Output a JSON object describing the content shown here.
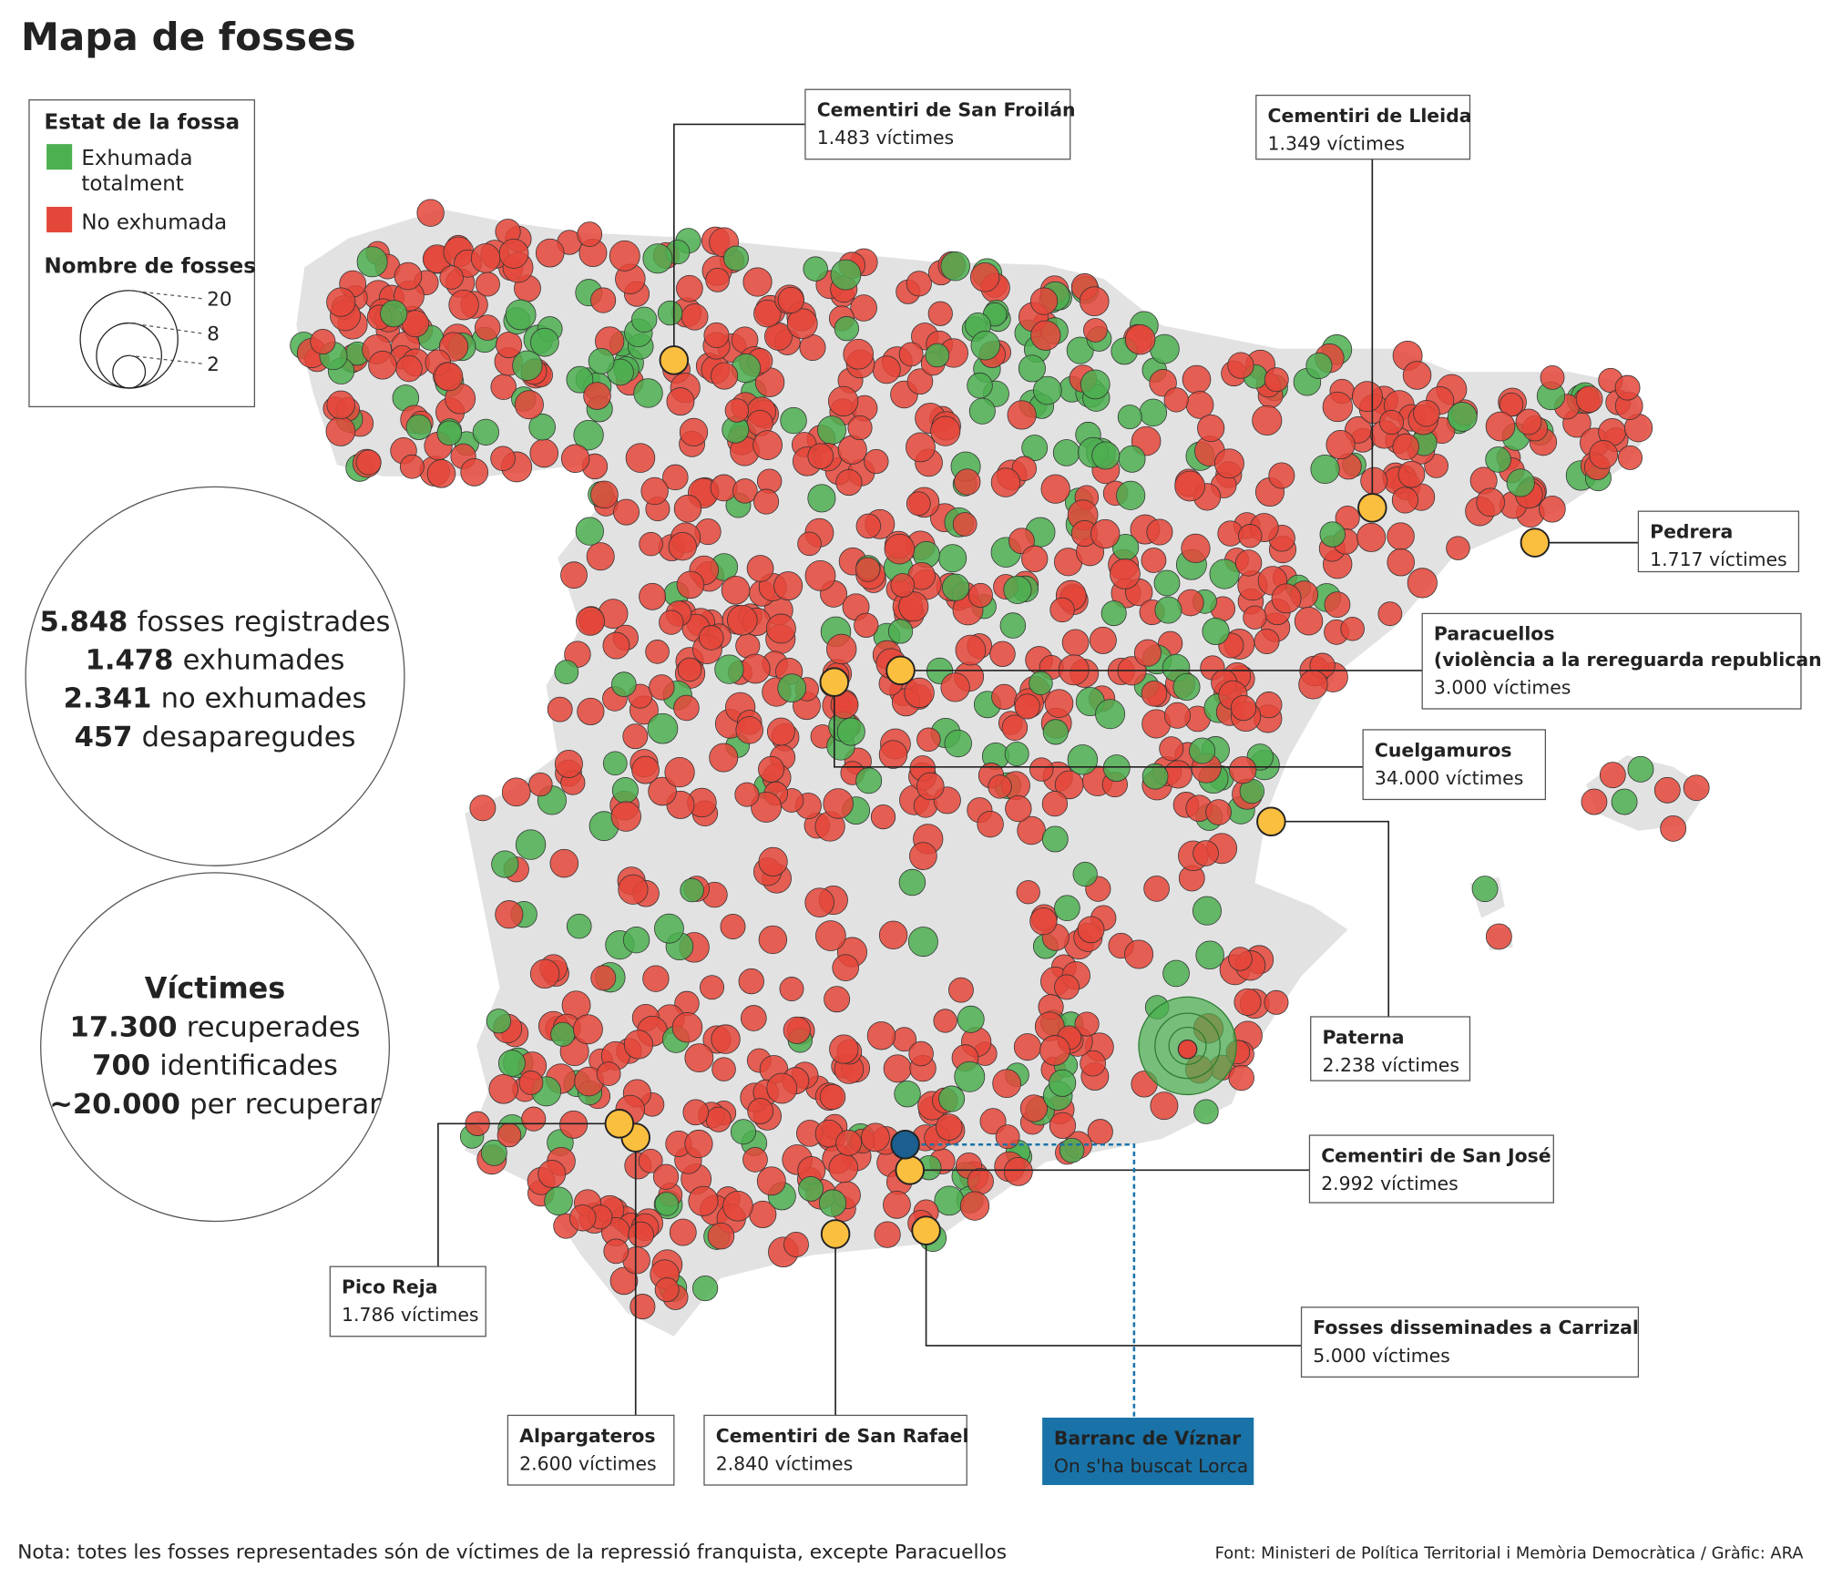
{
  "header": {
    "title": "Mapa de fosses"
  },
  "legend": {
    "title": "Estat de la fossa",
    "items": [
      {
        "label_lines": [
          "Exhumada",
          "totalment"
        ],
        "color": "#4caf50"
      },
      {
        "label_lines": [
          "No exhumada"
        ],
        "color": "#e4473a"
      }
    ],
    "size_title": "Nombre de fosses",
    "sizes": [
      "20",
      "8",
      "2"
    ]
  },
  "stats": {
    "graves": [
      {
        "number": "5.848",
        "text": "fosses registrades"
      },
      {
        "number": "1.478",
        "text": "exhumades"
      },
      {
        "number": "2.341",
        "text": "no exhumades"
      },
      {
        "number": "457",
        "text": "desaparegudes"
      }
    ],
    "victims_title": "Víctimes",
    "victims": [
      {
        "number": "17.300",
        "text": "recuperades"
      },
      {
        "number": "700",
        "text": "identificades"
      },
      {
        "number": "~20.000",
        "text": "per recuperar"
      }
    ]
  },
  "callouts": [
    {
      "name": "Cementiri de San Froilán",
      "victims": "1.483 víctimes"
    },
    {
      "name": "Cementiri de Lleida",
      "victims": "1.349 víctimes"
    },
    {
      "name": "Pedrera",
      "victims": "1.717 víctimes"
    },
    {
      "name": "Paracuellos",
      "name2": "(violència a la rereguarda republicana)",
      "victims": "3.000 víctimes"
    },
    {
      "name": "Cuelgamuros",
      "victims": "34.000 víctimes"
    },
    {
      "name": "Paterna",
      "victims": "2.238 víctimes"
    },
    {
      "name": "Cementiri de San José",
      "victims": "2.992 víctimes"
    },
    {
      "name": "Fosses disseminades a Carrizal",
      "victims": "5.000 víctimes"
    },
    {
      "name": "Barranc de Víznar",
      "victims": "On s'ha buscat Lorca"
    },
    {
      "name": "Cementiri de San Rafael",
      "victims": "2.840 víctimes"
    },
    {
      "name": "Alpargateros",
      "victims": "2.600 víctimes"
    },
    {
      "name": "Pico Reja",
      "victims": "1.786 víctimes"
    }
  ],
  "footer": {
    "note": "Nota: totes les fosses representades són de víctimes de la repressió franquista, excepte Paracuellos",
    "source": "Font: Ministeri de Política Territorial i Memòria Democràtica / Gràfic: ARA"
  }
}
